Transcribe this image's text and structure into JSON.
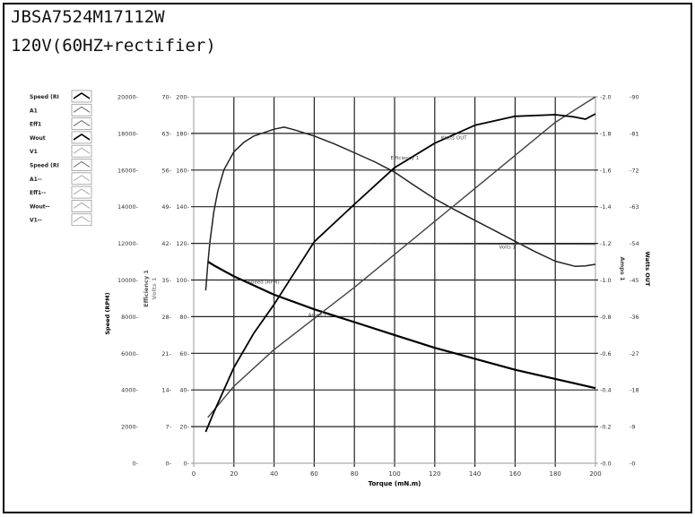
{
  "header": {
    "title": "JBSA7524M17112W",
    "subtitle": "120V(60HZ+rectifier)"
  },
  "legend": {
    "items": [
      {
        "label": "Speed (RI",
        "style": "dark"
      },
      {
        "label": "A1",
        "style": "light"
      },
      {
        "label": "Eff1",
        "style": "light"
      },
      {
        "label": "Wout",
        "style": "dark"
      },
      {
        "label": "V1",
        "style": "faint"
      },
      {
        "label": "Speed (RI",
        "style": "light"
      },
      {
        "label": "A1--",
        "style": "faint"
      },
      {
        "label": "Eff1--",
        "style": "faint"
      },
      {
        "label": "Wout--",
        "style": "faint"
      },
      {
        "label": "V1--",
        "style": "faint"
      }
    ]
  },
  "chart_data": {
    "type": "line",
    "xlabel": "Torque (mN.m)",
    "xlim": [
      0,
      200
    ],
    "xticks": [
      0,
      20,
      40,
      60,
      80,
      100,
      120,
      140,
      160,
      180,
      200
    ],
    "grid": true,
    "legend_placement": "left",
    "axes": {
      "speed": {
        "label": "Speed (RPM)",
        "side": "left",
        "lim": [
          0,
          20000
        ],
        "ticks": [
          "0",
          "2000",
          "4000",
          "6000",
          "8000",
          "10000",
          "12000",
          "14000",
          "16000",
          "18000",
          "20000"
        ]
      },
      "efficiency": {
        "label": "Efficiency 1",
        "side": "left",
        "lim": [
          0,
          70
        ],
        "ticks": [
          "0",
          "7",
          "14",
          "21",
          "28",
          "35",
          "42",
          "49",
          "56",
          "63",
          "70"
        ]
      },
      "volts": {
        "label": "Volts 1",
        "side": "left",
        "lim": [
          0,
          200
        ],
        "ticks": [
          "0",
          "20",
          "40",
          "60",
          "80",
          "100",
          "120",
          "140",
          "160",
          "180",
          "200"
        ]
      },
      "amps": {
        "label": "Amps 1",
        "side": "right",
        "lim": [
          0,
          2.0
        ],
        "ticks": [
          "0.0",
          "0.2",
          "0.4",
          "0.6",
          "0.8",
          "1.0",
          "1.2",
          "1.4",
          "1.6",
          "1.8",
          "2.0"
        ]
      },
      "watts": {
        "label": "Watts OUT",
        "side": "right",
        "lim": [
          0,
          90
        ],
        "ticks": [
          "0",
          "9",
          "18",
          "27",
          "36",
          "45",
          "54",
          "63",
          "72",
          "81",
          "90"
        ]
      }
    },
    "series": [
      {
        "name": "Speed (RPM)",
        "axis": "speed",
        "color": "#000000",
        "width": 2.2,
        "x": [
          7,
          10,
          20,
          40,
          60,
          80,
          100,
          120,
          140,
          160,
          180,
          200
        ],
        "y": [
          11000,
          10800,
          10200,
          9200,
          8400,
          7700,
          7000,
          6300,
          5700,
          5100,
          4600,
          4100
        ]
      },
      {
        "name": "Efficiency 1",
        "axis": "efficiency",
        "color": "#222222",
        "width": 1.5,
        "x": [
          6,
          7,
          8,
          10,
          12,
          15,
          20,
          25,
          30,
          40,
          45,
          50,
          60,
          70,
          80,
          90,
          100,
          110,
          120,
          130,
          140,
          150,
          160,
          170,
          180,
          190,
          195,
          200
        ],
        "y": [
          33,
          38,
          42,
          48,
          52,
          56,
          59.5,
          61.3,
          62.5,
          63.8,
          64.2,
          63.7,
          62.5,
          61,
          59.3,
          57.6,
          55.6,
          53,
          50.5,
          48.4,
          46.4,
          44.4,
          42.4,
          40.4,
          38.6,
          37.6,
          37.7,
          38
        ]
      },
      {
        "name": "Volts 1",
        "axis": "volts",
        "color": "#555555",
        "width": 1.2,
        "x": [
          7,
          50,
          100,
          150,
          200
        ],
        "y": [
          120,
          120,
          119.8,
          119.6,
          119.5
        ]
      },
      {
        "name": "Amps 1",
        "axis": "amps",
        "color": "#444444",
        "width": 1.4,
        "x": [
          7,
          20,
          40,
          60,
          80,
          100,
          120,
          140,
          160,
          180,
          200
        ],
        "y": [
          0.25,
          0.42,
          0.62,
          0.79,
          0.96,
          1.14,
          1.32,
          1.5,
          1.68,
          1.86,
          2.0
        ]
      },
      {
        "name": "Watts OUT",
        "axis": "watts",
        "color": "#000000",
        "width": 1.8,
        "x": [
          6,
          10,
          20,
          30,
          40,
          60,
          80,
          100,
          120,
          140,
          160,
          180,
          190,
          195,
          200
        ],
        "y": [
          7.7,
          12.5,
          23.5,
          32,
          39,
          54.4,
          63.6,
          72.6,
          78.6,
          83,
          85.2,
          85.6,
          85,
          84.5,
          85.8
        ]
      }
    ],
    "annotations": [
      {
        "text": "Watts OUT",
        "x": 123,
        "y_axis": "watts",
        "y": 79.5
      },
      {
        "text": "Efficiency 1",
        "x": 98,
        "y_axis": "efficiency",
        "y": 58
      },
      {
        "text": "Volts 1",
        "x": 152,
        "y_axis": "volts",
        "y": 117
      },
      {
        "text": "Speed (RPM)",
        "x": 27,
        "y_axis": "speed",
        "y": 9800
      },
      {
        "text": "Amps 1",
        "x": 57,
        "y_axis": "amps",
        "y": 0.8
      }
    ]
  }
}
